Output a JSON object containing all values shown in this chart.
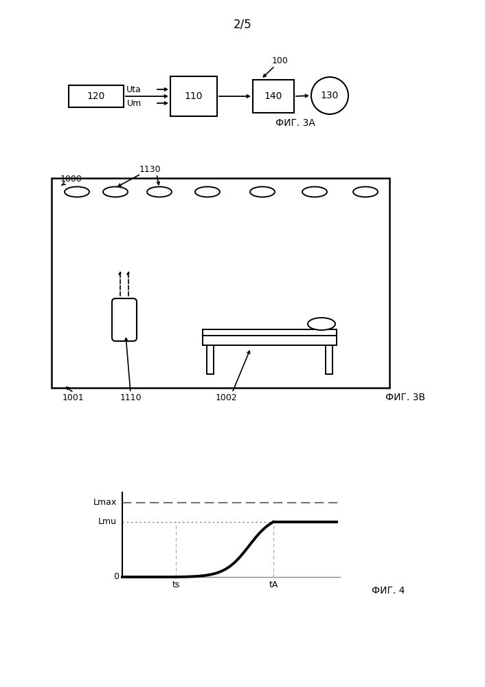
{
  "page_label": "2/5",
  "fig3a_label": "ФИГ. 3А",
  "fig3b_label": "ФИГ. 3В",
  "fig4_label": "ФИГ. 4",
  "block_120": "120",
  "block_110": "110",
  "block_140": "140",
  "block_130": "130",
  "label_100": "100",
  "label_Uta": "Uta",
  "label_Um": "Um",
  "label_1000": "1000",
  "label_1130": "1130",
  "label_1001": "1001",
  "label_1110": "1110",
  "label_1002": "1002",
  "label_Lmax": "Lmax",
  "label_Lmu": "Lmu",
  "label_0": "0",
  "label_ts": "ts",
  "label_tA": "tA",
  "bg_color": "#ffffff",
  "line_color": "#000000"
}
